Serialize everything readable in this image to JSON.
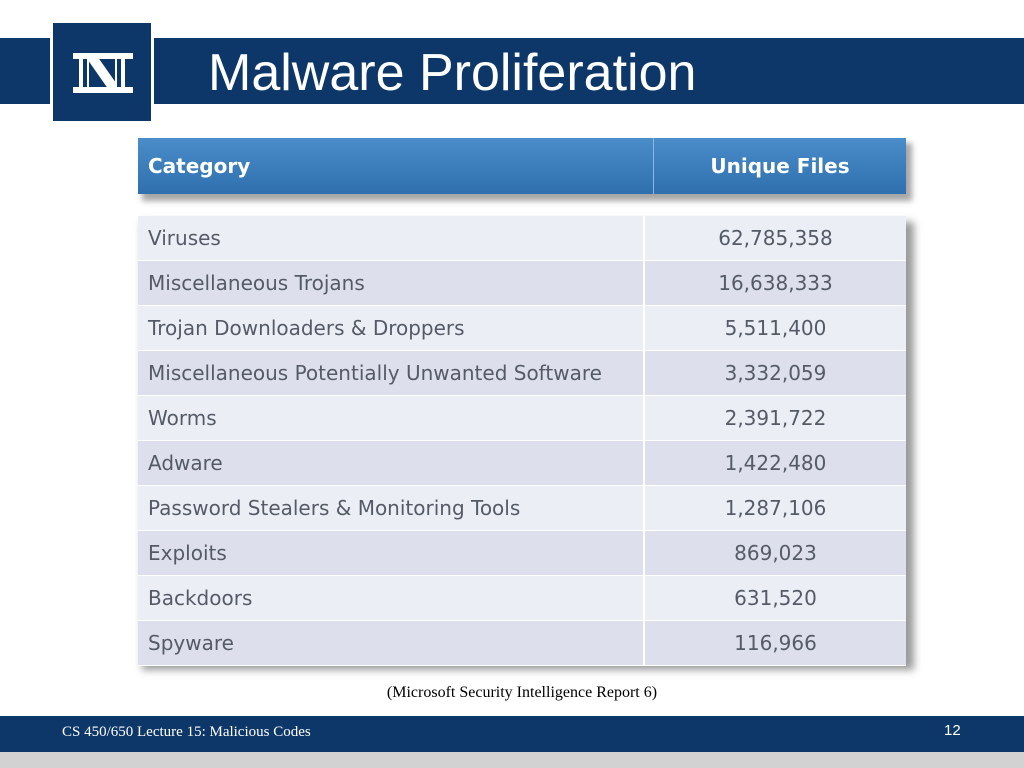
{
  "slide": {
    "title": "Malware Proliferation",
    "logo_text": "N",
    "caption": "(Microsoft Security Intelligence Report 6)",
    "footer": "CS 450/650 Lecture 15: Malicious Codes",
    "page_number": "12"
  },
  "colors": {
    "navy": "#0d3768",
    "table_header": "#3b7dbd",
    "row_light": "#eceef6",
    "row_dark": "#dde0ec"
  },
  "table": {
    "headers": [
      "Category",
      "Unique Files"
    ],
    "rows": [
      {
        "category": "Viruses",
        "value": "62,785,358"
      },
      {
        "category": "Miscellaneous Trojans",
        "value": "16,638,333"
      },
      {
        "category": "Trojan Downloaders & Droppers",
        "value": "5,511,400"
      },
      {
        "category": "Miscellaneous Potentially Unwanted Software",
        "value": "3,332,059"
      },
      {
        "category": "Worms",
        "value": "2,391,722"
      },
      {
        "category": "Adware",
        "value": "1,422,480"
      },
      {
        "category": "Password Stealers & Monitoring Tools",
        "value": "1,287,106"
      },
      {
        "category": "Exploits",
        "value": "869,023"
      },
      {
        "category": "Backdoors",
        "value": "631,520"
      },
      {
        "category": "Spyware",
        "value": "116,966"
      }
    ]
  }
}
